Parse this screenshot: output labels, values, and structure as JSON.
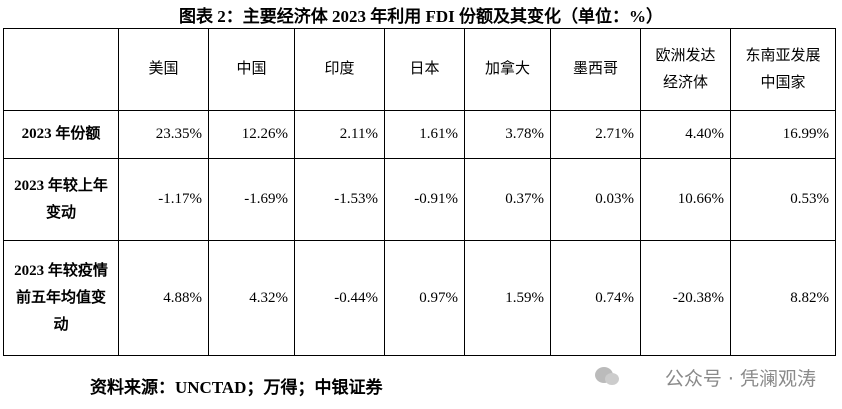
{
  "title": "图表 2：主要经济体 2023 年利用 FDI 份额及其变化（单位：%）",
  "table": {
    "header": [
      "美国",
      "中国",
      "印度",
      "日本",
      "加拿大",
      "墨西哥",
      "欧洲发达经济体",
      "东南亚发展中国家"
    ],
    "rows": [
      {
        "label": "2023 年份额",
        "values": [
          "23.35%",
          "12.26%",
          "2.11%",
          "1.61%",
          "3.78%",
          "2.71%",
          "4.40%",
          "16.99%"
        ]
      },
      {
        "label": "2023 年较上年变动",
        "values": [
          "-1.17%",
          "-1.69%",
          "-1.53%",
          "-0.91%",
          "0.37%",
          "0.03%",
          "10.66%",
          "0.53%"
        ]
      },
      {
        "label": "2023 年较疫情前五年均值变动",
        "values": [
          "4.88%",
          "4.32%",
          "-0.44%",
          "0.97%",
          "1.59%",
          "0.74%",
          "-20.38%",
          "8.82%"
        ]
      }
    ]
  },
  "source": "资料来源：UNCTAD；万得；中银证券",
  "watermark": "公众号 · 凭澜观涛"
}
